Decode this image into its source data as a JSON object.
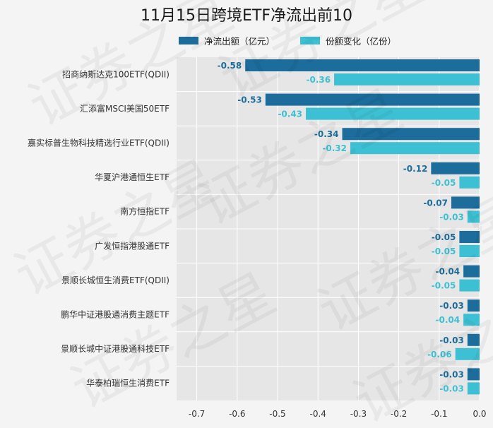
{
  "chart_data": {
    "type": "bar",
    "orientation": "horizontal",
    "title": "11月15日跨境ETF净流出前10",
    "categories": [
      "招商纳斯达克100ETF(QDII)",
      "汇添富MSCI美国50ETF",
      "嘉实标普生物科技精选行业ETF(QDII)",
      "华夏沪港通恒生ETF",
      "南方恒指ETF",
      "广发恒指港股通ETF",
      "景顺长城恒生消费ETF(QDII)",
      "鹏华中证港股通消费主题ETF",
      "景顺长城中证港股通科技ETF",
      "华泰柏瑞恒生消费ETF"
    ],
    "series": [
      {
        "name": "净流出额（亿元）",
        "color": "#1c6d9c",
        "values": [
          -0.58,
          -0.53,
          -0.34,
          -0.12,
          -0.07,
          -0.05,
          -0.04,
          -0.03,
          -0.03,
          -0.03
        ],
        "labels": [
          "-0.58",
          "-0.53",
          "-0.34",
          "-0.12",
          "-0.07",
          "-0.05",
          "-0.04",
          "-0.03",
          "-0.03",
          "-0.03"
        ]
      },
      {
        "name": "份额变化（亿份）",
        "color": "#3dc0d3",
        "values": [
          -0.36,
          -0.43,
          -0.32,
          -0.05,
          -0.03,
          -0.05,
          -0.05,
          -0.04,
          -0.06,
          -0.03
        ],
        "labels": [
          "-0.36",
          "-0.43",
          "-0.32",
          "-0.05",
          "-0.03",
          "-0.05",
          "-0.05",
          "-0.04",
          "-0.06",
          "-0.03"
        ]
      }
    ],
    "xlim": [
      -0.75,
      0.0
    ],
    "xticks": [
      -0.7,
      -0.6,
      -0.5,
      -0.4,
      -0.3,
      -0.2,
      -0.1,
      0.0
    ],
    "xtick_labels": [
      "-0.7",
      "-0.6",
      "-0.5",
      "-0.4",
      "-0.3",
      "-0.2",
      "-0.1",
      "0.0"
    ],
    "grid": true,
    "legend_position": "top",
    "watermark": "证券之星"
  }
}
